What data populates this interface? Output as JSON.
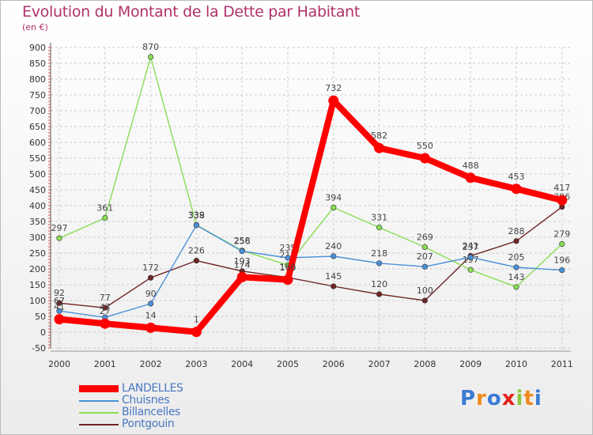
{
  "header": {
    "title": "Evolution du Montant de la Dette par Habitant",
    "subtitle": "(en €)"
  },
  "colors": {
    "title": "#b0306a",
    "grid": "#cccccc",
    "axis": "#555555"
  },
  "logo": {
    "text": "Proxiti"
  },
  "chart_data": {
    "type": "line",
    "title": "Evolution du Montant de la Dette par Habitant",
    "ylabel": "(en €)",
    "xlabel": "",
    "ylim": [
      -50,
      900
    ],
    "yticks": [
      -50,
      0,
      50,
      100,
      150,
      200,
      250,
      300,
      350,
      400,
      450,
      500,
      550,
      600,
      650,
      700,
      750,
      800,
      850,
      900
    ],
    "grid": true,
    "legend_position": "bottom-left",
    "categories": [
      "2000",
      "2001",
      "2002",
      "2003",
      "2004",
      "2005",
      "2006",
      "2007",
      "2008",
      "2009",
      "2010",
      "2011"
    ],
    "series": [
      {
        "name": "LANDELLES",
        "color": "#ff0000",
        "values": [
          41,
          27,
          14,
          1,
          174,
          166,
          732,
          582,
          550,
          488,
          453,
          417
        ],
        "labels": [
          "41",
          "27",
          "14",
          "1",
          "174",
          "166",
          "732",
          "582",
          "550",
          "488",
          "453",
          "417"
        ]
      },
      {
        "name": "Chuisnes",
        "color": "#4a90d9",
        "values": [
          67,
          47,
          90,
          338,
          256,
          235,
          240,
          218,
          207,
          237,
          205,
          196
        ],
        "labels": [
          "67",
          "47",
          "90",
          "338",
          "256",
          "235",
          "240",
          "218",
          "207",
          "237",
          "205",
          "196"
        ]
      },
      {
        "name": "Billancelles",
        "color": "#88dd55",
        "values": [
          297,
          361,
          870,
          339,
          258,
          212,
          394,
          331,
          269,
          197,
          143,
          279
        ],
        "labels": [
          "297",
          "361",
          "870",
          "339",
          "258",
          "212",
          "394",
          "331",
          "269",
          "197",
          "143",
          "279"
        ]
      },
      {
        "name": "Pontgouin",
        "color": "#702525",
        "values": [
          92,
          77,
          172,
          226,
          193,
          173,
          145,
          120,
          100,
          241,
          288,
          396
        ],
        "labels": [
          "92",
          "77",
          "172",
          "226",
          "193",
          "173",
          "145",
          "120",
          "100",
          "241",
          "288",
          "396"
        ]
      }
    ]
  }
}
